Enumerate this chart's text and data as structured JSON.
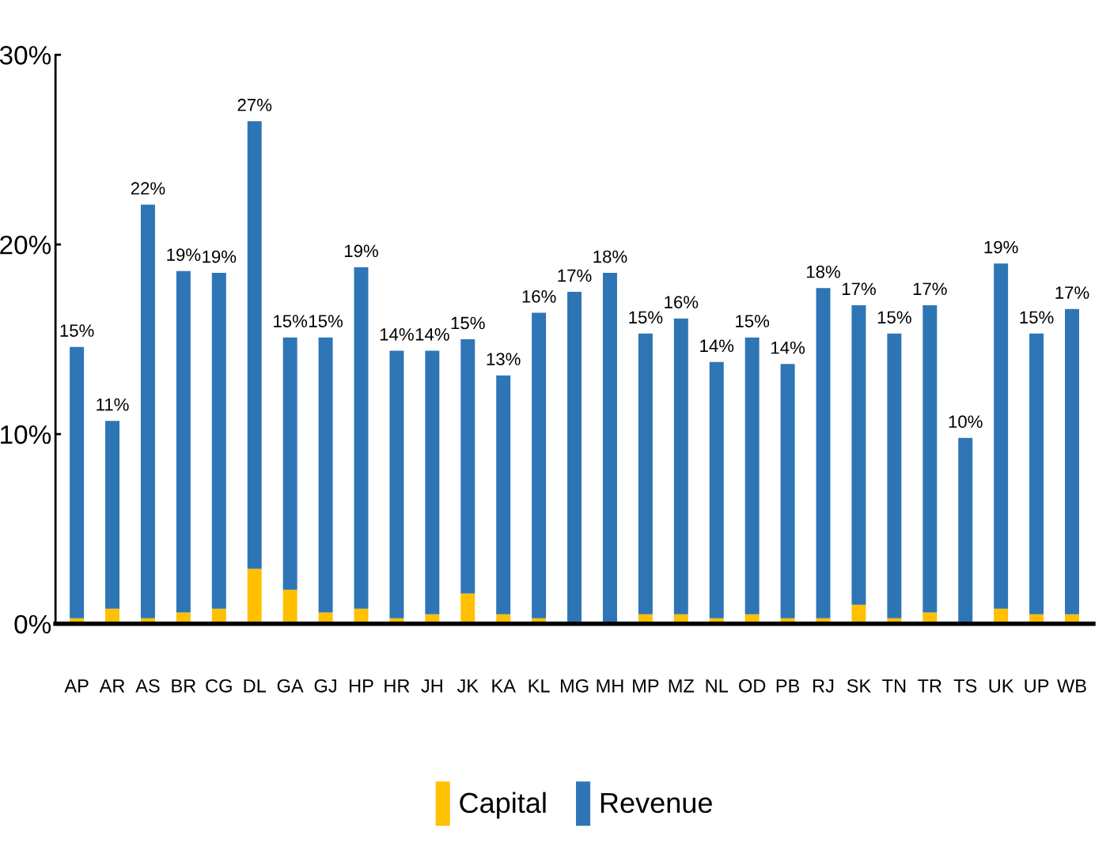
{
  "chart_data": {
    "type": "bar",
    "stacked": true,
    "categories": [
      "AP",
      "AR",
      "AS",
      "BR",
      "CG",
      "DL",
      "GA",
      "GJ",
      "HP",
      "HR",
      "JH",
      "JK",
      "KA",
      "KL",
      "MG",
      "MH",
      "MP",
      "MZ",
      "NL",
      "OD",
      "PB",
      "RJ",
      "SK",
      "TN",
      "TR",
      "TS",
      "UK",
      "UP",
      "WB"
    ],
    "series": [
      {
        "name": "Capital",
        "color": "#ffc000",
        "values": [
          0.3,
          0.8,
          0.3,
          0.6,
          0.8,
          2.9,
          1.8,
          0.6,
          0.8,
          0.3,
          0.5,
          1.6,
          0.5,
          0.3,
          0,
          0,
          0.5,
          0.5,
          0.3,
          0.5,
          0.3,
          0.3,
          1.0,
          0.3,
          0.6,
          0,
          0.8,
          0.5,
          0.5
        ]
      },
      {
        "name": "Revenue",
        "color": "#2e75b6",
        "values": [
          14.3,
          9.9,
          21.8,
          18.0,
          17.7,
          23.6,
          13.3,
          14.5,
          18.0,
          14.1,
          13.9,
          13.4,
          12.6,
          16.1,
          17.5,
          18.5,
          14.8,
          15.6,
          13.5,
          14.6,
          13.4,
          17.4,
          15.8,
          15.0,
          16.2,
          9.8,
          18.2,
          14.8,
          16.1
        ]
      }
    ],
    "totals": [
      "15%",
      "11%",
      "22%",
      "19%",
      "19%",
      "27%",
      "15%",
      "15%",
      "19%",
      "14%",
      "14%",
      "15%",
      "13%",
      "16%",
      "17%",
      "18%",
      "15%",
      "16%",
      "14%",
      "15%",
      "14%",
      "18%",
      "17%",
      "15%",
      "17%",
      "10%",
      "19%",
      "15%",
      "17%"
    ],
    "ylim": [
      0,
      30
    ],
    "yticks": [
      {
        "value": 0,
        "label": "0%"
      },
      {
        "value": 10,
        "label": "10%"
      },
      {
        "value": 20,
        "label": "20%"
      },
      {
        "value": 30,
        "label": "30%"
      }
    ],
    "grid": false,
    "legend": "bottom"
  }
}
